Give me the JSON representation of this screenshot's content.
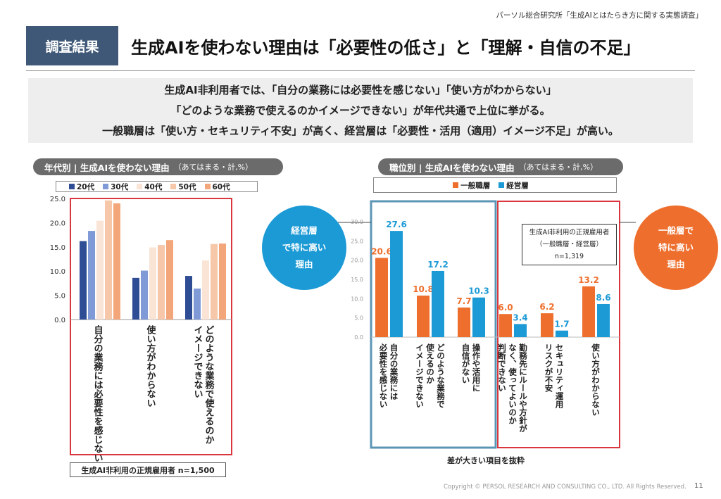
{
  "source": "パーソル総合研究所「生成AIとはたらき方に関する実態調査」",
  "badge": "調査結果",
  "headline": "生成AIを使わない理由は「必要性の低さ」と「理解・自信の不足」",
  "summary": [
    "生成AI非利用者では、「自分の業務には必要性を感じない」「使い方がわからない」",
    "「どのような業務で使えるのかイメージできない」が年代共通で上位に挙がる。",
    "一般職層は「使い方・セキュリティ不安」が高く、経営層は「必要性・活用（適用）イメージ不足」が高い。"
  ],
  "left_panel": {
    "pill_title": "年代別 | 生成AIを使わない理由",
    "pill_sub": "（あてはまる・計,%）",
    "note": "生成AI非利用の正規雇用者 n=1,500"
  },
  "right_panel": {
    "pill_title": "職位別 | 生成AIを使わない理由",
    "pill_sub": "（あてはまる・計,%）",
    "callout": [
      "生成AI非利用の正規雇用者",
      "（一般職層・経営層）",
      "n=1,319"
    ],
    "note": "差が大きい項目を抜粋",
    "circle_left": [
      "経営層",
      "で特に高い",
      "理由"
    ],
    "circle_right": [
      "一般層で",
      "特に高い",
      "理由"
    ]
  },
  "copyright": "Copyright © PERSOL RESEARCH AND CONSULTING CO., LTD. All Rights Reserved.",
  "page_number": "11",
  "colors": {
    "badge": "#3f5877",
    "age_series": [
      "#2f4d94",
      "#7f9ad7",
      "#f9e4d6",
      "#f7c7a9",
      "#f3a679"
    ],
    "general": "#ee6f2d",
    "executive": "#1b9ad6",
    "red_box": "#d9363e",
    "blue_box": "#5b95b4"
  },
  "chart_data": [
    {
      "type": "bar",
      "categories": [
        "自分の業務には必要性を感じない",
        "使い方がわからない",
        "どのような業務で使えるのかイメージできない"
      ],
      "series": [
        {
          "name": "20代",
          "values": [
            16.2,
            8.6,
            9.0
          ]
        },
        {
          "name": "30代",
          "values": [
            18.3,
            10.1,
            6.4
          ]
        },
        {
          "name": "40代",
          "values": [
            20.4,
            14.9,
            12.2
          ]
        },
        {
          "name": "50代",
          "values": [
            24.6,
            15.4,
            15.6
          ]
        },
        {
          "name": "60代",
          "values": [
            24.0,
            16.4,
            15.7
          ]
        }
      ],
      "ylim": [
        0,
        25
      ],
      "yticks": [
        "0.0",
        "5.0",
        "10.0",
        "15.0",
        "20.0",
        "25.0"
      ],
      "legend": "top"
    },
    {
      "type": "bar",
      "categories": [
        "自分の業務には必要性を感じない",
        "どのような業務で使えるのかイメージできない",
        "操作や活用に自信がない",
        "勤務先にルールや方針がなく、使ってよいのか判断できない",
        "セキュリティ運用リスクが不安",
        "使い方がわからない"
      ],
      "series": [
        {
          "name": "一般職層",
          "values": [
            20.6,
            10.8,
            7.7,
            6.0,
            6.2,
            13.2
          ]
        },
        {
          "name": "経営層",
          "values": [
            27.6,
            17.2,
            10.3,
            3.4,
            1.7,
            8.6
          ]
        }
      ],
      "ylim": [
        0,
        30
      ],
      "yticks": [
        "0.0",
        "5.0",
        "10.0",
        "15.0",
        "20.0",
        "25.0",
        "30.0"
      ],
      "legend": "top"
    }
  ]
}
